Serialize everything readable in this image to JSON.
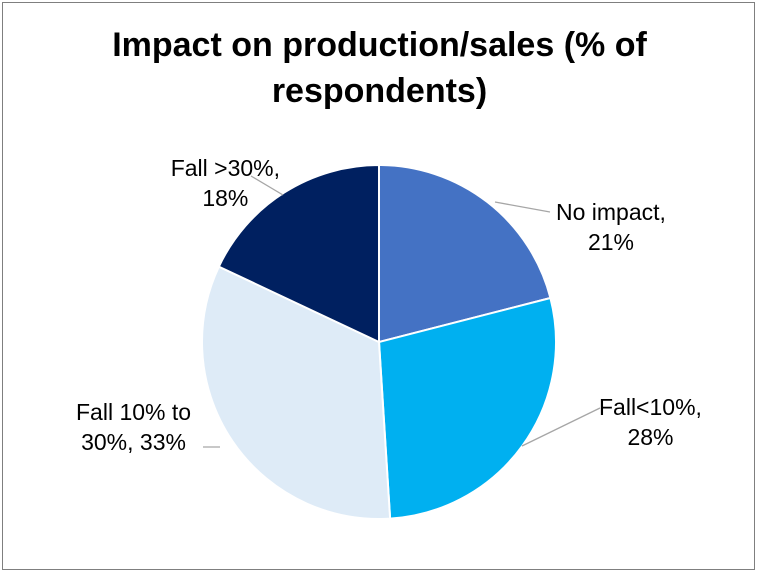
{
  "chart_data": {
    "type": "pie",
    "title": "Impact on production/sales (% of respondents)",
    "title_lines": [
      "Impact on production/sales (% of",
      "respondents)"
    ],
    "slices": [
      {
        "label": "No impact",
        "value": 21,
        "color": "#4472c4",
        "label_lines": [
          "No impact,",
          "21%"
        ]
      },
      {
        "label": "Fall<10%",
        "value": 28,
        "color": "#00b0f0",
        "label_lines": [
          "Fall<10%,",
          "28%"
        ]
      },
      {
        "label": "Fall 10% to 30%",
        "value": 33,
        "color": "#deebf7",
        "label_lines": [
          "Fall 10% to",
          "30%, 33%"
        ]
      },
      {
        "label": "Fall >30%",
        "value": 18,
        "color": "#002060",
        "label_lines": [
          "Fall >30%,",
          "18%"
        ]
      }
    ],
    "start_angle_deg": 0,
    "direction": "clockwise",
    "slice_border_color": "#ffffff",
    "leader_line_color": "#a6a6a6",
    "legend": "none"
  }
}
